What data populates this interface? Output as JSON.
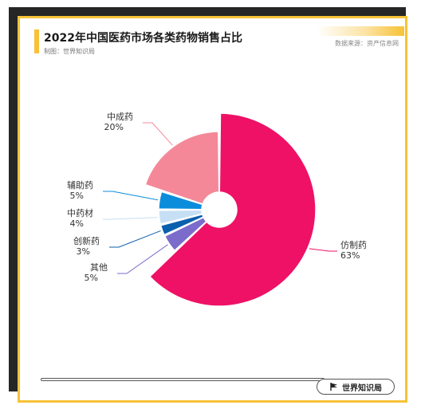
{
  "header": {
    "title": "2022年中国医药市场各类药物销售占比",
    "subtitle": "制图：世界知识局",
    "source": "数据来源：资产信息网"
  },
  "footer": {
    "brand": "世界知识局"
  },
  "colors": {
    "accent": "#f7c237",
    "background_dark": "#262626"
  },
  "chart_data": {
    "type": "pie",
    "title": "2022年中国医药市场各类药物销售占比",
    "unit": "%",
    "slices": [
      {
        "name": "仿制药",
        "value": 63,
        "label": "63%",
        "color": "#ee1166"
      },
      {
        "name": "其他",
        "value": 5,
        "label": "5%",
        "color": "#7b6bcb"
      },
      {
        "name": "创新药",
        "value": 3,
        "label": "3%",
        "color": "#0a5fae"
      },
      {
        "name": "中药材",
        "value": 4,
        "label": "4%",
        "color": "#c6dff4"
      },
      {
        "name": "辅助药",
        "value": 5,
        "label": "5%",
        "color": "#0c8ddc"
      },
      {
        "name": "中成药",
        "value": 20,
        "label": "20%",
        "color": "#f48898"
      }
    ]
  }
}
